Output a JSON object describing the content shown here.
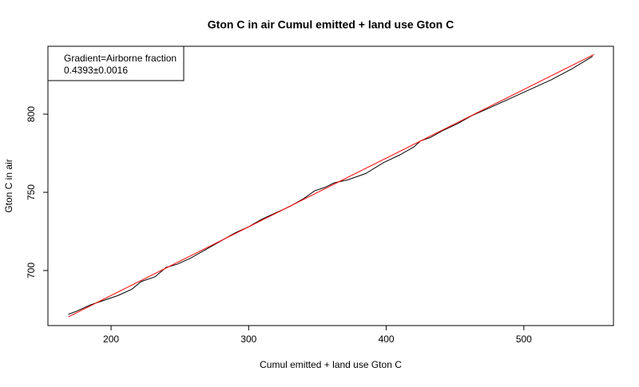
{
  "chart_data": {
    "type": "line",
    "title": "Gton C in air Cumul emitted + land use Gton C",
    "xlabel": "Cumul emitted + land use Gton C",
    "ylabel": "Gton C in air",
    "annotations": [
      "Gradient=Airborne fraction",
      "0.4393±0.0016"
    ],
    "xlim": [
      154.1,
      565.1
    ],
    "ylim": [
      664.8,
      843.4
    ],
    "xticks": [
      200,
      300,
      400,
      500
    ],
    "yticks": [
      700,
      750,
      800
    ],
    "series": [
      {
        "color": "#000000",
        "x": [
          169,
          175,
          185,
          195,
          205,
          215,
          222,
          232,
          240,
          248,
          258,
          268,
          280,
          290,
          300,
          310,
          320,
          330,
          340,
          348,
          355,
          362,
          372,
          385,
          398,
          410,
          420,
          425,
          432,
          440,
          452,
          462,
          475,
          490,
          505,
          520,
          535,
          550
        ],
        "values": [
          672,
          674,
          678,
          681,
          684,
          688,
          693,
          696,
          702,
          704,
          708,
          713,
          719,
          724,
          728,
          733,
          737,
          741,
          746,
          751,
          753,
          756,
          758,
          762,
          769,
          774,
          779,
          783,
          785,
          789,
          794,
          799,
          804,
          810,
          816,
          822,
          829,
          837
        ]
      },
      {
        "color": "#ff0000",
        "x": [
          169,
          551
        ],
        "values": [
          670.4,
          838.2
        ]
      }
    ]
  }
}
